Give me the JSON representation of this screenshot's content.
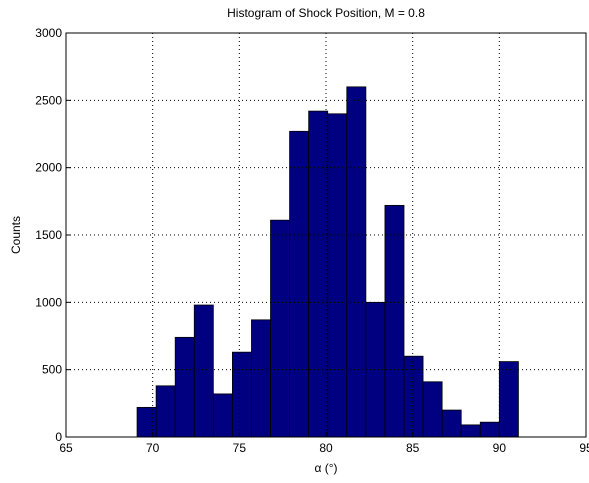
{
  "chart_data": {
    "type": "histogram",
    "title": "Histogram of Shock Position, M = 0.8",
    "x_label": "α (°)",
    "y_label": "Counts",
    "bins": [
      69.1,
      70.2,
      71.3,
      72.4,
      73.5,
      74.6,
      75.7,
      76.8,
      77.9,
      79.0,
      80.1,
      81.2,
      82.3,
      83.4,
      84.5,
      85.6,
      86.7,
      87.8,
      88.9,
      90.0,
      91.1
    ],
    "values": [
      220,
      380,
      740,
      980,
      320,
      630,
      870,
      1610,
      2270,
      2420,
      2400,
      2600,
      1000,
      1720,
      600,
      410,
      200,
      90,
      110,
      560
    ],
    "color": "#000080",
    "xlim": [
      65,
      95
    ],
    "xticks": [
      65,
      70,
      75,
      80,
      85,
      90,
      95
    ],
    "ylim": [
      0,
      3000
    ],
    "yticks": [
      0,
      500,
      1000,
      1500,
      2000,
      2500,
      3000
    ],
    "grid": true
  }
}
